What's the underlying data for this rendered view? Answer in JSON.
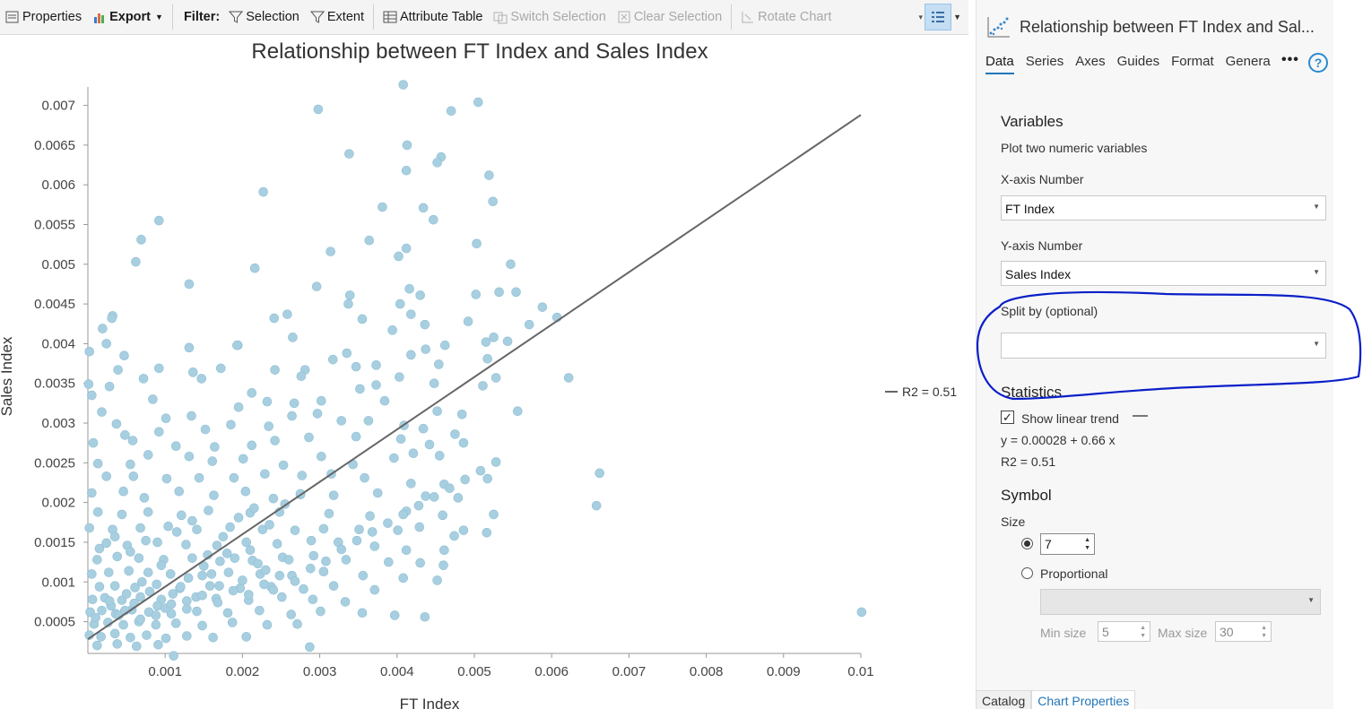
{
  "toolbar": {
    "properties": "Properties",
    "export": "Export",
    "filter_label": "Filter:",
    "selection": "Selection",
    "extent": "Extent",
    "attribute_table": "Attribute Table",
    "switch_selection": "Switch Selection",
    "clear_selection": "Clear Selection",
    "rotate_chart": "Rotate Chart"
  },
  "chart_data": {
    "type": "scatter",
    "title": "Relationship between FT Index and Sales Index",
    "xlabel": "FT Index",
    "ylabel": "Sales Index",
    "xlim": [
      0.0,
      0.01
    ],
    "ylim": [
      0.0001,
      0.0073
    ],
    "x_ticks": [
      "0.001",
      "0.002",
      "0.003",
      "0.004",
      "0.005",
      "0.006",
      "0.007",
      "0.008",
      "0.009",
      "0.01"
    ],
    "y_ticks": [
      "0.0005",
      "0.001",
      "0.0015",
      "0.002",
      "0.0025",
      "0.003",
      "0.0035",
      "0.004",
      "0.0045",
      "0.005",
      "0.0055",
      "0.006",
      "0.0065",
      "0.007"
    ],
    "trendline": {
      "intercept": 0.00028,
      "slope": 0.66,
      "label": "R2 = 0.51"
    },
    "marker_color": "#a8cfe0",
    "trend_color": "#666666",
    "points": [
      [
        0.00408,
        0.00726
      ],
      [
        0.00505,
        0.00704
      ],
      [
        0.00298,
        0.00695
      ],
      [
        0.0047,
        0.00693
      ],
      [
        0.00413,
        0.0065
      ],
      [
        0.00457,
        0.00635
      ],
      [
        0.00338,
        0.00639
      ],
      [
        0.00452,
        0.00628
      ],
      [
        0.00412,
        0.00618
      ],
      [
        0.00519,
        0.00612
      ],
      [
        0.00227,
        0.00591
      ],
      [
        0.00524,
        0.00579
      ],
      [
        0.00381,
        0.00572
      ],
      [
        0.00434,
        0.00571
      ],
      [
        0.00447,
        0.00556
      ],
      [
        0.00092,
        0.00555
      ],
      [
        0.00069,
        0.00531
      ],
      [
        0.00364,
        0.0053
      ],
      [
        0.00503,
        0.00526
      ],
      [
        0.00412,
        0.0052
      ],
      [
        0.00314,
        0.00516
      ],
      [
        0.00402,
        0.0051
      ],
      [
        0.00062,
        0.00503
      ],
      [
        0.00547,
        0.005
      ],
      [
        0.00216,
        0.00495
      ],
      [
        0.00131,
        0.00475
      ],
      [
        0.00296,
        0.00472
      ],
      [
        0.00416,
        0.00469
      ],
      [
        0.00502,
        0.00462
      ],
      [
        0.00554,
        0.00465
      ],
      [
        0.00532,
        0.00465
      ],
      [
        0.00339,
        0.00461
      ],
      [
        0.0043,
        0.00461
      ],
      [
        0.00588,
        0.00446
      ],
      [
        0.00607,
        0.00433
      ],
      [
        0.00337,
        0.0045
      ],
      [
        0.00404,
        0.0045
      ],
      [
        0.00032,
        0.00435
      ],
      [
        0.00031,
        0.00432
      ],
      [
        0.00241,
        0.00432
      ],
      [
        0.00258,
        0.00437
      ],
      [
        0.00355,
        0.00431
      ],
      [
        0.00418,
        0.00437
      ],
      [
        0.00571,
        0.00424
      ],
      [
        0.00492,
        0.00428
      ],
      [
        0.00047,
        0.00385
      ],
      [
        0.00131,
        0.00395
      ],
      [
        0.00194,
        0.00398
      ],
      [
        0.00335,
        0.00388
      ],
      [
        0.00394,
        0.00417
      ],
      [
        0.00436,
        0.00424
      ],
      [
        0.00525,
        0.00408
      ],
      [
        0.00515,
        0.00402
      ],
      [
        0.00543,
        0.00403
      ],
      [
        0.00019,
        0.00419
      ],
      [
        0.00024,
        0.004
      ],
      [
        0.00193,
        0.00398
      ],
      [
        0.00265,
        0.00408
      ],
      [
        0.00317,
        0.0038
      ],
      [
        0.00418,
        0.00386
      ],
      [
        0.00462,
        0.00398
      ],
      [
        0.00437,
        0.00393
      ],
      [
        2e-05,
        0.0039
      ],
      [
        0.00039,
        0.00367
      ],
      [
        0.00092,
        0.00369
      ],
      [
        0.00172,
        0.00369
      ],
      [
        0.00242,
        0.00367
      ],
      [
        0.00281,
        0.00367
      ],
      [
        0.00347,
        0.00371
      ],
      [
        0.00373,
        0.00373
      ],
      [
        0.00454,
        0.00374
      ],
      [
        0.00517,
        0.00381
      ],
      [
        1e-05,
        0.00349
      ],
      [
        5e-05,
        0.00335
      ],
      [
        0.00028,
        0.00346
      ],
      [
        0.00072,
        0.00356
      ],
      [
        0.00136,
        0.00364
      ],
      [
        0.00147,
        0.00356
      ],
      [
        0.00212,
        0.00338
      ],
      [
        0.00276,
        0.00359
      ],
      [
        0.00352,
        0.00343
      ],
      [
        0.00373,
        0.00348
      ],
      [
        0.00403,
        0.00358
      ],
      [
        0.00448,
        0.0035
      ],
      [
        0.00511,
        0.00347
      ],
      [
        0.00528,
        0.00357
      ],
      [
        0.00622,
        0.00357
      ],
      [
        0.00018,
        0.00314
      ],
      [
        0.00084,
        0.0033
      ],
      [
        0.00101,
        0.00306
      ],
      [
        0.00134,
        0.00309
      ],
      [
        0.00195,
        0.0032
      ],
      [
        0.00232,
        0.00327
      ],
      [
        0.00267,
        0.00325
      ],
      [
        0.00302,
        0.00328
      ],
      [
        0.00384,
        0.00328
      ],
      [
        0.00452,
        0.00315
      ],
      [
        0.00484,
        0.00311
      ],
      [
        0.00556,
        0.00315
      ],
      [
        0.00037,
        0.00299
      ],
      [
        0.00092,
        0.00289
      ],
      [
        0.00152,
        0.00292
      ],
      [
        0.00185,
        0.00298
      ],
      [
        0.00234,
        0.00296
      ],
      [
        0.00264,
        0.00309
      ],
      [
        0.00297,
        0.00312
      ],
      [
        0.00328,
        0.00303
      ],
      [
        0.00363,
        0.00303
      ],
      [
        0.00409,
        0.00297
      ],
      [
        0.00434,
        0.00293
      ],
      [
        0.00475,
        0.00286
      ],
      [
        7e-05,
        0.00275
      ],
      [
        0.00048,
        0.00285
      ],
      [
        0.00058,
        0.00278
      ],
      [
        0.00114,
        0.00271
      ],
      [
        0.00164,
        0.0027
      ],
      [
        0.00212,
        0.00272
      ],
      [
        0.00242,
        0.00278
      ],
      [
        0.00286,
        0.00282
      ],
      [
        0.00347,
        0.00283
      ],
      [
        0.00405,
        0.0028
      ],
      [
        0.00442,
        0.00273
      ],
      [
        0.00486,
        0.00275
      ],
      [
        0.00013,
        0.00249
      ],
      [
        0.00055,
        0.00248
      ],
      [
        0.00078,
        0.0026
      ],
      [
        0.00131,
        0.00258
      ],
      [
        0.00161,
        0.00252
      ],
      [
        0.00201,
        0.00255
      ],
      [
        0.00253,
        0.00247
      ],
      [
        0.00302,
        0.00258
      ],
      [
        0.00343,
        0.00248
      ],
      [
        0.00396,
        0.00256
      ],
      [
        0.00421,
        0.00262
      ],
      [
        0.00455,
        0.00259
      ],
      [
        0.00662,
        0.00237
      ],
      [
        0.00024,
        0.00233
      ],
      [
        0.00059,
        0.00233
      ],
      [
        0.00102,
        0.0023
      ],
      [
        0.00144,
        0.00231
      ],
      [
        0.00189,
        0.00231
      ],
      [
        0.00229,
        0.00236
      ],
      [
        0.00277,
        0.00234
      ],
      [
        0.00315,
        0.00236
      ],
      [
        0.00358,
        0.00231
      ],
      [
        0.00418,
        0.00224
      ],
      [
        0.00461,
        0.00223
      ],
      [
        0.00517,
        0.0023
      ],
      [
        5e-05,
        0.00212
      ],
      [
        0.00046,
        0.00214
      ],
      [
        0.00073,
        0.00206
      ],
      [
        0.00118,
        0.00214
      ],
      [
        0.00163,
        0.00209
      ],
      [
        0.00204,
        0.00214
      ],
      [
        0.0024,
        0.00205
      ],
      [
        0.00275,
        0.0021
      ],
      [
        0.00318,
        0.00209
      ],
      [
        0.00375,
        0.00212
      ],
      [
        0.00437,
        0.00208
      ],
      [
        0.00479,
        0.00206
      ],
      [
        0.00658,
        0.00196
      ],
      [
        0.00013,
        0.00188
      ],
      [
        0.00044,
        0.00185
      ],
      [
        0.00078,
        0.00188
      ],
      [
        0.00121,
        0.00184
      ],
      [
        0.00156,
        0.0019
      ],
      [
        0.0021,
        0.00187
      ],
      [
        0.00248,
        0.00188
      ],
      [
        0.00312,
        0.00186
      ],
      [
        0.00365,
        0.00183
      ],
      [
        0.00412,
        0.00189
      ],
      [
        0.00459,
        0.00184
      ],
      [
        0.00525,
        0.00185
      ],
      [
        2e-05,
        0.00168
      ],
      [
        0.00032,
        0.00166
      ],
      [
        0.00068,
        0.00168
      ],
      [
        0.00104,
        0.0017
      ],
      [
        0.00141,
        0.00166
      ],
      [
        0.00184,
        0.00169
      ],
      [
        0.00226,
        0.00166
      ],
      [
        0.00268,
        0.00165
      ],
      [
        0.00305,
        0.00167
      ],
      [
        0.00351,
        0.00166
      ],
      [
        0.00401,
        0.00165
      ],
      [
        0.00429,
        0.00169
      ],
      [
        0.00486,
        0.00165
      ],
      [
        0.00516,
        0.00162
      ],
      [
        0.00024,
        0.00149
      ],
      [
        0.00051,
        0.00146
      ],
      [
        0.0009,
        0.0015
      ],
      [
        0.00127,
        0.00147
      ],
      [
        0.00167,
        0.00146
      ],
      [
        0.00205,
        0.0015
      ],
      [
        0.00245,
        0.00148
      ],
      [
        0.00289,
        0.00152
      ],
      [
        0.00324,
        0.0015
      ],
      [
        0.00371,
        0.00145
      ],
      [
        0.00412,
        0.0014
      ],
      [
        0.00461,
        0.0014
      ],
      [
        0.00474,
        0.00158
      ],
      [
        0.00012,
        0.00128
      ],
      [
        0.00038,
        0.00132
      ],
      [
        0.00066,
        0.0013
      ],
      [
        0.00098,
        0.00128
      ],
      [
        0.00135,
        0.0013
      ],
      [
        0.00171,
        0.00126
      ],
      [
        0.00213,
        0.00127
      ],
      [
        0.00252,
        0.00131
      ],
      [
        0.00292,
        0.00133
      ],
      [
        0.00334,
        0.00128
      ],
      [
        0.00389,
        0.00125
      ],
      [
        0.0043,
        0.00124
      ],
      [
        0.0046,
        0.00121
      ],
      [
        5e-05,
        0.0011
      ],
      [
        0.00027,
        0.00112
      ],
      [
        0.00053,
        0.00114
      ],
      [
        0.00078,
        0.00112
      ],
      [
        0.00107,
        0.0011
      ],
      [
        0.00148,
        0.00108
      ],
      [
        0.00182,
        0.00112
      ],
      [
        0.00223,
        0.0011
      ],
      [
        0.00264,
        0.00108
      ],
      [
        0.00305,
        0.00113
      ],
      [
        0.00356,
        0.00108
      ],
      [
        0.00408,
        0.00105
      ],
      [
        0.00452,
        0.00102
      ],
      [
        0.00015,
        0.00094
      ],
      [
        0.00035,
        0.00095
      ],
      [
        0.00061,
        0.00093
      ],
      [
        0.00089,
        0.00097
      ],
      [
        0.00119,
        0.00092
      ],
      [
        0.00158,
        0.00095
      ],
      [
        0.00197,
        0.00092
      ],
      [
        0.00237,
        0.00094
      ],
      [
        0.00279,
        0.00091
      ],
      [
        0.00318,
        0.00095
      ],
      [
        0.00371,
        0.0009
      ],
      [
        6e-05,
        0.00078
      ],
      [
        0.00022,
        0.0008
      ],
      [
        0.00044,
        0.00077
      ],
      [
        0.00068,
        0.00081
      ],
      [
        0.00095,
        0.00078
      ],
      [
        0.00128,
        0.00076
      ],
      [
        0.00166,
        0.00079
      ],
      [
        0.00208,
        0.00077
      ],
      [
        0.00251,
        0.00081
      ],
      [
        0.00291,
        0.00078
      ],
      [
        0.00333,
        0.00075
      ],
      [
        3e-05,
        0.00062
      ],
      [
        0.00018,
        0.00064
      ],
      [
        0.00036,
        0.0006
      ],
      [
        0.00057,
        0.00065
      ],
      [
        0.00079,
        0.00062
      ],
      [
        0.00108,
        0.0006
      ],
      [
        0.00141,
        0.00063
      ],
      [
        0.00181,
        0.00061
      ],
      [
        0.00222,
        0.00064
      ],
      [
        0.00263,
        0.00059
      ],
      [
        0.00301,
        0.00063
      ],
      [
        0.00355,
        0.00061
      ],
      [
        0.00397,
        0.00058
      ],
      [
        0.00436,
        0.00056
      ],
      [
        0.01001,
        0.00062
      ],
      [
        8e-05,
        0.00047
      ],
      [
        0.00026,
        0.00049
      ],
      [
        0.00046,
        0.00046
      ],
      [
        0.00066,
        0.0005
      ],
      [
        0.00088,
        0.00046
      ],
      [
        0.00114,
        0.00048
      ],
      [
        0.00148,
        0.00045
      ],
      [
        0.00187,
        0.00049
      ],
      [
        0.00232,
        0.00046
      ],
      [
        0.00271,
        0.00047
      ],
      [
        2e-05,
        0.00033
      ],
      [
        0.00017,
        0.00031
      ],
      [
        0.00035,
        0.00035
      ],
      [
        0.00055,
        0.0003
      ],
      [
        0.00076,
        0.00033
      ],
      [
        0.00101,
        0.00029
      ],
      [
        0.00128,
        0.00032
      ],
      [
        0.00162,
        0.0003
      ],
      [
        0.00205,
        0.00031
      ],
      [
        0.00012,
        0.0002
      ],
      [
        0.00038,
        0.00022
      ],
      [
        0.00063,
        0.00019
      ],
      [
        0.00091,
        0.00021
      ],
      [
        0.00287,
        0.00018
      ],
      [
        0.00111,
        7e-05
      ],
      [
        0.0001,
        0.00055
      ],
      [
        0.0003,
        0.0007
      ],
      [
        0.0005,
        0.00085
      ],
      [
        0.0007,
        0.001
      ],
      [
        0.0009,
        0.0007
      ],
      [
        0.0011,
        0.00085
      ],
      [
        0.0013,
        0.00105
      ],
      [
        0.0015,
        0.0012
      ],
      [
        0.0017,
        0.00095
      ],
      [
        0.0019,
        0.0013
      ],
      [
        0.0021,
        0.0014
      ],
      [
        0.0023,
        0.00115
      ],
      [
        0.0004,
        0.00058
      ],
      [
        0.0006,
        0.00073
      ],
      [
        0.0008,
        0.00088
      ],
      [
        0.001,
        0.00067
      ],
      [
        0.0012,
        0.00094
      ],
      [
        0.0014,
        0.00081
      ],
      [
        0.0016,
        0.0011
      ],
      [
        0.0018,
        0.00136
      ],
      [
        0.002,
        0.00102
      ],
      [
        0.0022,
        0.00123
      ],
      [
        0.0024,
        0.0009
      ],
      [
        0.0026,
        0.00128
      ],
      [
        0.00015,
        0.00142
      ],
      [
        0.00035,
        0.00157
      ],
      [
        0.00055,
        0.00138
      ],
      [
        0.00075,
        0.00152
      ],
      [
        0.00095,
        0.00121
      ],
      [
        0.00115,
        0.00163
      ],
      [
        0.00135,
        0.00177
      ],
      [
        0.00155,
        0.00134
      ],
      [
        0.00175,
        0.00157
      ],
      [
        0.00195,
        0.00181
      ],
      [
        0.00215,
        0.00193
      ],
      [
        0.00235,
        0.00172
      ],
      [
        0.00255,
        0.00198
      ],
      [
        0.00275,
        0.00211
      ],
      [
        0.00028,
        0.00076
      ],
      [
        0.00048,
        0.00064
      ],
      [
        0.00068,
        0.00053
      ],
      [
        0.00088,
        0.00058
      ],
      [
        0.00108,
        0.00072
      ],
      [
        0.00128,
        0.00066
      ],
      [
        0.00148,
        0.00083
      ],
      [
        0.00168,
        0.00074
      ],
      [
        0.00188,
        0.00089
      ],
      [
        0.00208,
        0.00084
      ],
      [
        0.00228,
        0.00097
      ],
      [
        0.00248,
        0.00108
      ],
      [
        0.00268,
        0.00101
      ],
      [
        0.00288,
        0.00117
      ],
      [
        0.00308,
        0.00126
      ],
      [
        0.00328,
        0.00141
      ],
      [
        0.00348,
        0.00152
      ],
      [
        0.00368,
        0.00163
      ],
      [
        0.00388,
        0.00174
      ],
      [
        0.00408,
        0.00185
      ],
      [
        0.00428,
        0.00196
      ],
      [
        0.00448,
        0.00207
      ],
      [
        0.00468,
        0.00218
      ],
      [
        0.00488,
        0.00229
      ],
      [
        0.00508,
        0.0024
      ],
      [
        0.00528,
        0.00251
      ]
    ]
  },
  "legend": {
    "r2_label": "R2 = 0.51"
  },
  "panel": {
    "title": "Relationship between FT Index and Sal...",
    "tabs": [
      "Data",
      "Series",
      "Axes",
      "Guides",
      "Format",
      "Genera"
    ],
    "more": "•••",
    "help": "?",
    "variables_heading": "Variables",
    "variables_desc": "Plot two numeric variables",
    "x_axis_label": "X-axis Number",
    "x_axis_value": "FT Index",
    "y_axis_label": "Y-axis Number",
    "y_axis_value": "Sales Index",
    "split_label": "Split by (optional)",
    "split_value": "",
    "statistics_heading": "Statistics",
    "show_trend_label": "Show linear trend",
    "equation": "y = 0.00028 + 0.66 x",
    "r2": "R2 = 0.51",
    "symbol_heading": "Symbol",
    "size_label": "Size",
    "size_value": "7",
    "proportional_label": "Proportional",
    "min_size_label": "Min size",
    "min_size_value": "5",
    "max_size_label": "Max size",
    "max_size_value": "30"
  },
  "bottom_tabs": [
    "Catalog",
    "Chart Properties"
  ],
  "annotation_color": "#0a1fc8"
}
